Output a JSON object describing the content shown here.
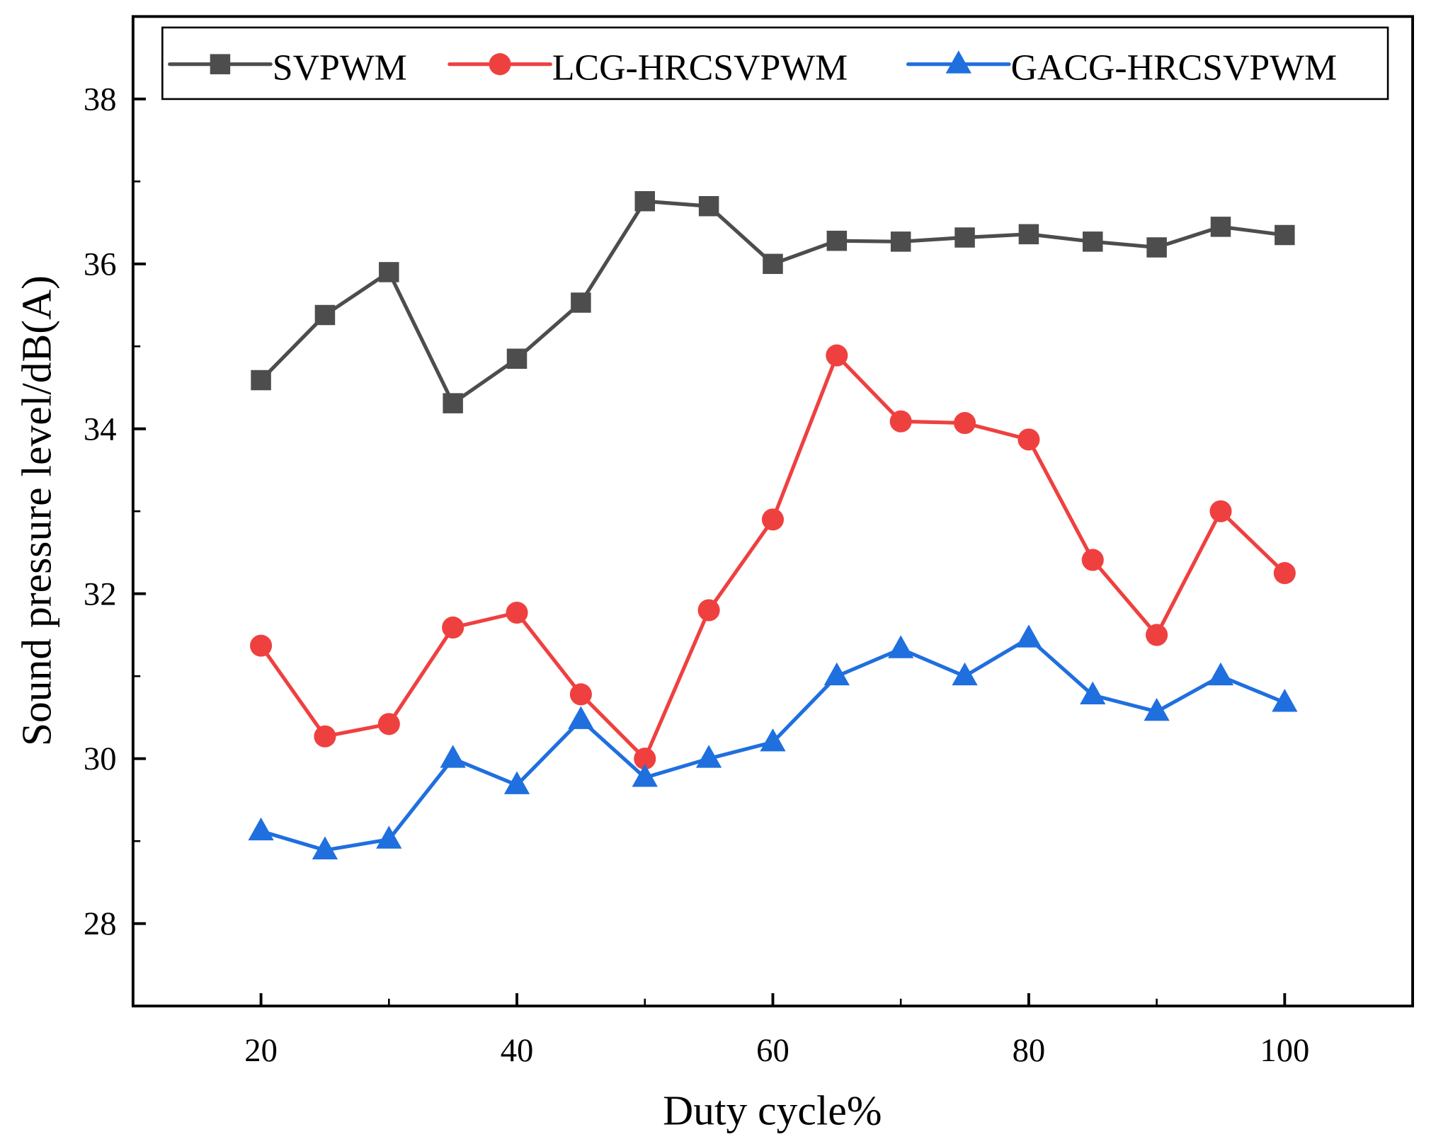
{
  "chart_data": {
    "type": "line",
    "title": "",
    "xlabel": "Duty cycle%",
    "ylabel": "Sound pressure level/dB(A)",
    "xlim": [
      10,
      110
    ],
    "ylim": [
      27,
      39
    ],
    "xticks": [
      20,
      40,
      60,
      80,
      100
    ],
    "yticks": [
      28,
      30,
      32,
      34,
      36,
      38
    ],
    "grid": false,
    "legend_position": "top",
    "x": [
      20,
      25,
      30,
      35,
      40,
      45,
      50,
      55,
      60,
      65,
      70,
      75,
      80,
      85,
      90,
      95,
      100
    ],
    "series": [
      {
        "name": "SVPWM",
        "marker": "square",
        "color": "#4d4d4d",
        "values": [
          34.59,
          35.38,
          35.9,
          34.31,
          34.85,
          35.53,
          36.76,
          36.7,
          36.0,
          36.28,
          36.27,
          36.32,
          36.36,
          36.27,
          36.2,
          36.45,
          36.35
        ]
      },
      {
        "name": "LCG-HRCSVPWM",
        "marker": "circle",
        "color": "#ef4040",
        "values": [
          31.37,
          30.27,
          30.42,
          31.59,
          31.77,
          30.78,
          30.0,
          31.8,
          32.9,
          34.89,
          34.09,
          34.07,
          33.87,
          32.41,
          31.5,
          33.0,
          32.25
        ]
      },
      {
        "name": "GACG-HRCSVPWM",
        "marker": "triangle",
        "color": "#1f6fdf",
        "values": [
          29.12,
          28.89,
          29.02,
          30.0,
          29.68,
          30.47,
          29.77,
          30.0,
          30.2,
          31.0,
          31.33,
          31.0,
          31.46,
          30.77,
          30.57,
          31.0,
          30.68
        ]
      }
    ]
  }
}
